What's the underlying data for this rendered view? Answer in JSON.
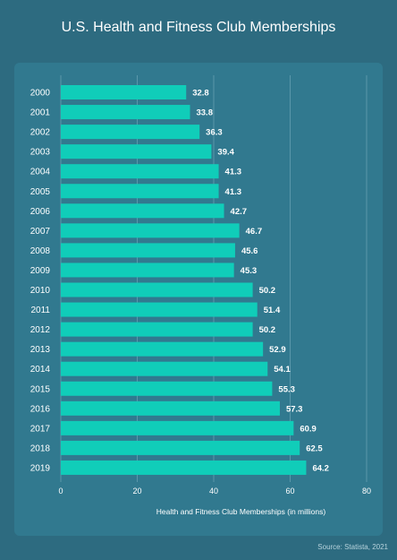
{
  "title": "U.S. Health and Fitness Club Memberships",
  "source": "Source: Statista, 2021",
  "colors": {
    "bar": "#10cdb9",
    "background": "#2d6b80",
    "panel": "#31798f",
    "grid": "#5a97aa"
  },
  "chart_data": {
    "type": "bar",
    "orientation": "horizontal",
    "title": "U.S. Health and Fitness Club Memberships",
    "xlabel": "Health and Fitness Club Memberships (in millions)",
    "ylabel": "",
    "xlim": [
      0,
      80
    ],
    "xticks": [
      0,
      20,
      40,
      60,
      80
    ],
    "grid": true,
    "categories": [
      "2000",
      "2001",
      "2002",
      "2003",
      "2004",
      "2005",
      "2006",
      "2007",
      "2008",
      "2009",
      "2010",
      "2011",
      "2012",
      "2013",
      "2014",
      "2015",
      "2016",
      "2017",
      "2018",
      "2019"
    ],
    "values": [
      32.8,
      33.8,
      36.3,
      39.4,
      41.3,
      41.3,
      42.7,
      46.7,
      45.6,
      45.3,
      50.2,
      51.4,
      50.2,
      52.9,
      54.1,
      55.3,
      57.3,
      60.9,
      62.5,
      64.2
    ]
  }
}
